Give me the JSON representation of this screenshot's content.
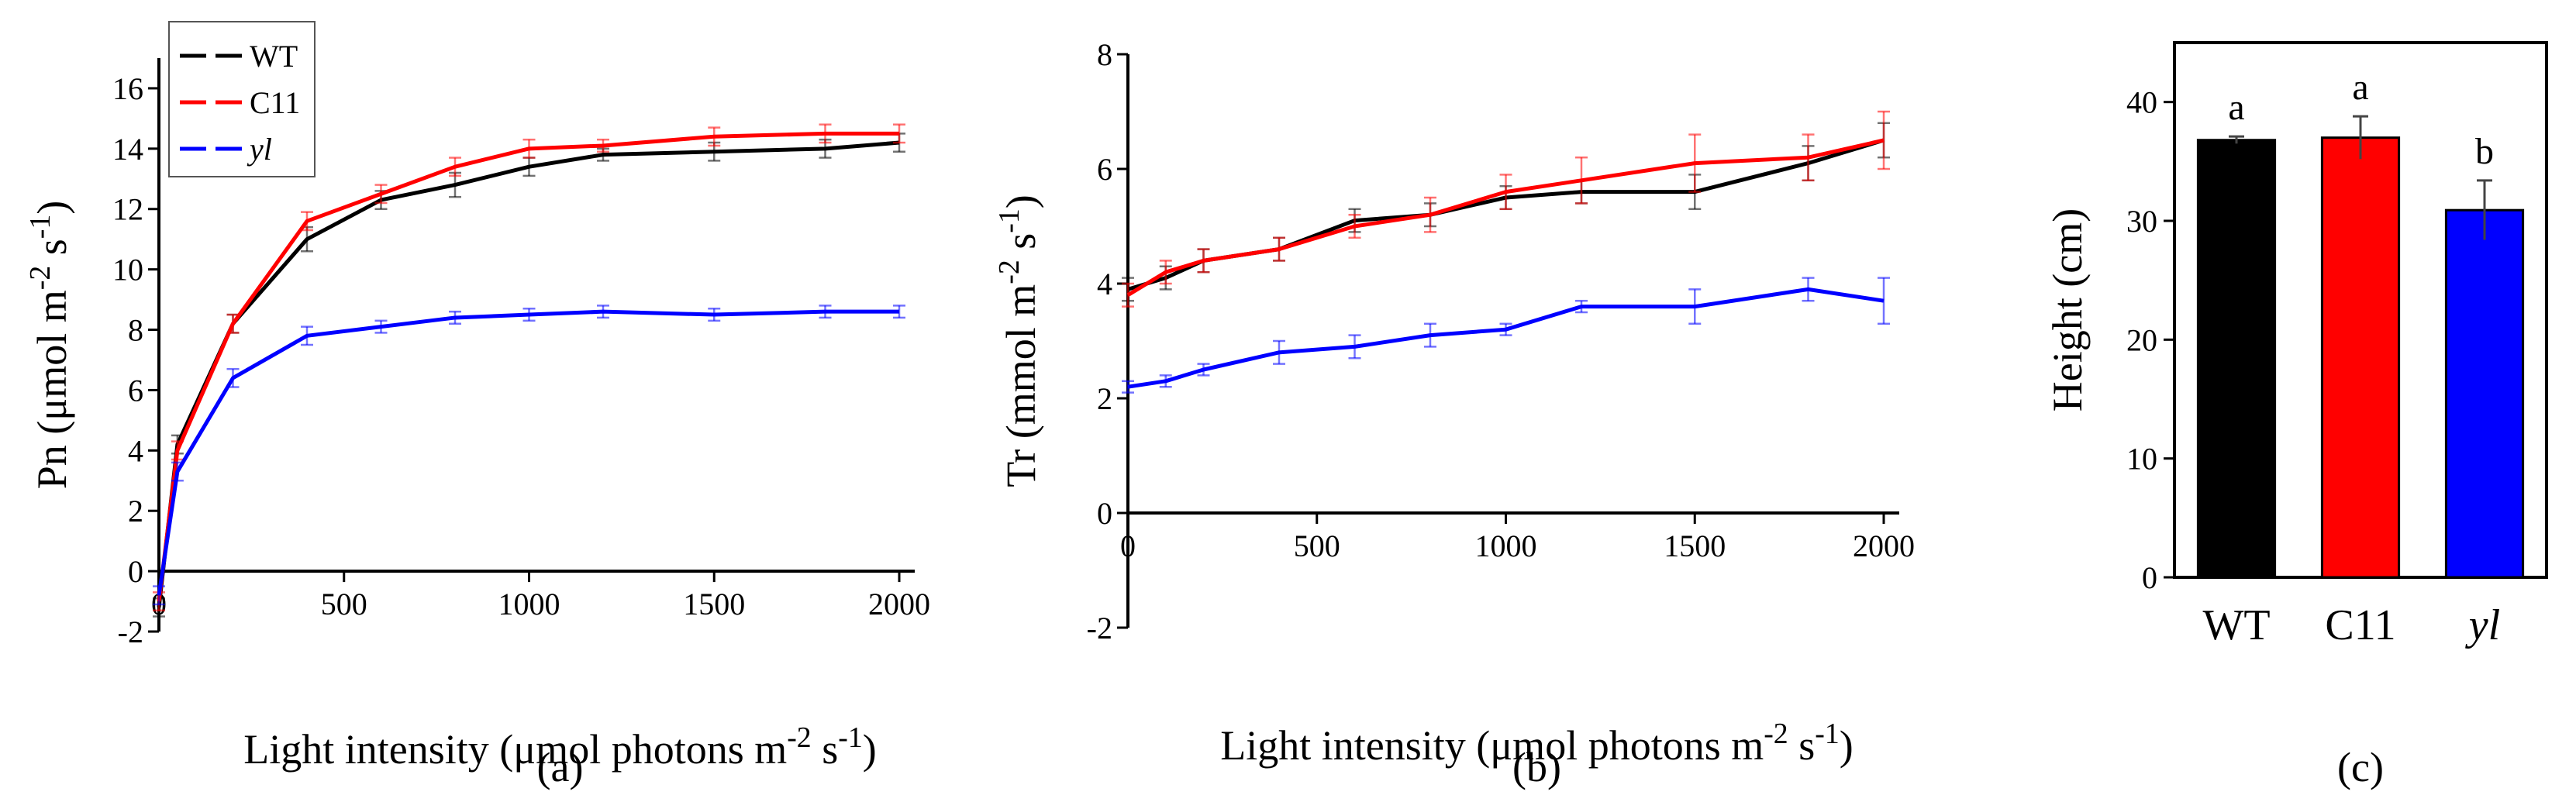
{
  "colors": {
    "WT": "#000000",
    "C11": "#ff0000",
    "yl": "#0000ff"
  },
  "chart_data": [
    {
      "type": "line",
      "panel_label": "(a)",
      "xlabel": "Light intensity (μmol photons m⁻² s⁻¹)",
      "ylabel": "Pn (μmol m⁻² s⁻¹)",
      "xlim": [
        0,
        2000
      ],
      "ylim": [
        -2,
        17
      ],
      "xticks": [
        "0",
        "500",
        "1000",
        "1500",
        "2000"
      ],
      "yticks": [
        "-2",
        "0",
        "2",
        "4",
        "6",
        "8",
        "10",
        "12",
        "14",
        "16"
      ],
      "legend_position": "top-left",
      "x": [
        0,
        50,
        200,
        400,
        600,
        800,
        1000,
        1200,
        1500,
        1800,
        2000
      ],
      "series": [
        {
          "name": "WT",
          "values": [
            -1.2,
            4.2,
            8.2,
            11.0,
            12.3,
            12.8,
            13.4,
            13.8,
            13.9,
            14.0,
            14.2
          ],
          "errors": [
            0.3,
            0.3,
            0.3,
            0.4,
            0.3,
            0.4,
            0.3,
            0.2,
            0.3,
            0.3,
            0.3
          ]
        },
        {
          "name": "C11",
          "values": [
            -1.0,
            4.0,
            8.2,
            11.6,
            12.5,
            13.4,
            14.0,
            14.1,
            14.4,
            14.5,
            14.5
          ],
          "errors": [
            0.3,
            0.3,
            0.3,
            0.3,
            0.3,
            0.3,
            0.3,
            0.2,
            0.3,
            0.3,
            0.3
          ]
        },
        {
          "name": "yl",
          "values": [
            -0.8,
            3.3,
            6.4,
            7.8,
            8.1,
            8.4,
            8.5,
            8.6,
            8.5,
            8.6,
            8.6
          ],
          "errors": [
            0.3,
            0.3,
            0.3,
            0.3,
            0.2,
            0.2,
            0.2,
            0.2,
            0.2,
            0.2,
            0.2
          ]
        }
      ]
    },
    {
      "type": "line",
      "panel_label": "(b)",
      "xlabel": "Light intensity (μmol photons m⁻² s⁻¹)",
      "ylabel": "Tr (mmol m⁻² s⁻¹)",
      "xlim": [
        0,
        2000
      ],
      "ylim": [
        -2,
        8
      ],
      "xticks": [
        "0",
        "500",
        "1000",
        "1500",
        "2000"
      ],
      "yticks": [
        "-2",
        "0",
        "2",
        "4",
        "6",
        "8"
      ],
      "x": [
        0,
        100,
        200,
        400,
        600,
        800,
        1000,
        1200,
        1500,
        1800,
        2000
      ],
      "series": [
        {
          "name": "WT",
          "values": [
            3.9,
            4.1,
            4.4,
            4.6,
            5.1,
            5.2,
            5.5,
            5.6,
            5.6,
            6.1,
            6.5
          ],
          "errors": [
            0.2,
            0.2,
            0.2,
            0.2,
            0.2,
            0.2,
            0.2,
            0.2,
            0.3,
            0.3,
            0.3
          ]
        },
        {
          "name": "C11",
          "values": [
            3.8,
            4.2,
            4.4,
            4.6,
            5.0,
            5.2,
            5.6,
            5.8,
            6.1,
            6.2,
            6.5
          ],
          "errors": [
            0.2,
            0.2,
            0.2,
            0.2,
            0.2,
            0.3,
            0.3,
            0.4,
            0.5,
            0.4,
            0.5
          ]
        },
        {
          "name": "yl",
          "values": [
            2.2,
            2.3,
            2.5,
            2.8,
            2.9,
            3.1,
            3.2,
            3.6,
            3.6,
            3.9,
            3.7
          ],
          "errors": [
            0.1,
            0.1,
            0.1,
            0.2,
            0.2,
            0.2,
            0.1,
            0.1,
            0.3,
            0.2,
            0.4
          ]
        }
      ]
    },
    {
      "type": "bar",
      "panel_label": "(c)",
      "ylabel": "Height (cm)",
      "categories": [
        "WT",
        "C11",
        "yl"
      ],
      "values": [
        36.8,
        37.0,
        30.9
      ],
      "errors": [
        0.3,
        1.8,
        2.5
      ],
      "significance": [
        "a",
        "a",
        "b"
      ],
      "ylim": [
        0,
        45
      ],
      "yticks": [
        "0",
        "10",
        "20",
        "30",
        "40"
      ]
    }
  ]
}
